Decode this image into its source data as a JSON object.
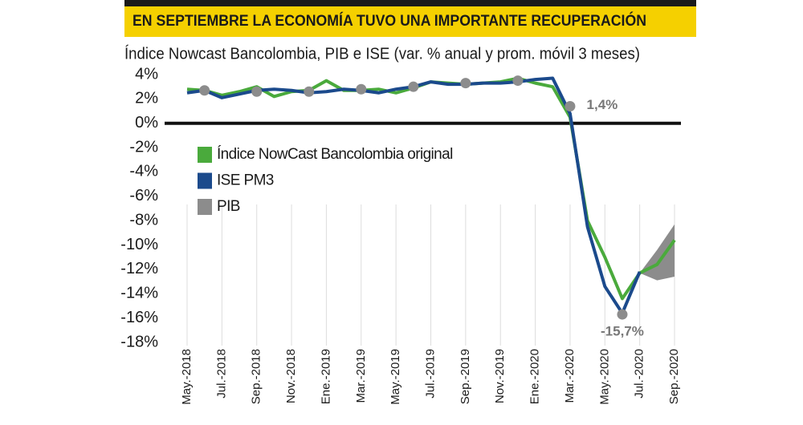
{
  "chart_data": {
    "type": "line",
    "title": "EN SEPTIEMBRE LA ECONOMÍA TUVO UNA IMPORTANTE RECUPERACIÓN",
    "subtitle": "Índice Nowcast Bancolombia, PIB e ISE (var. % anual y prom. móvil 3 meses)",
    "categories": [
      "May.-2018",
      null,
      "Jul.-2018",
      null,
      "Sep.-2018",
      null,
      "Nov.-2018",
      null,
      "Ene.-2019",
      null,
      "Mar.-2019",
      null,
      "May.-2019",
      null,
      "Jul.-2019",
      null,
      "Sep.-2019",
      null,
      "Nov.-2019",
      null,
      "Ene.-2020",
      null,
      "Mar.-2020",
      null,
      "May.-2020",
      null,
      "Jul.-2020",
      null,
      "Sep.-2020"
    ],
    "series": [
      {
        "name": "Índice NowCast Bancolombia original",
        "color": "#4aaa3c",
        "style": "line",
        "values": [
          2.8,
          2.7,
          2.3,
          2.6,
          3.0,
          2.2,
          2.6,
          2.7,
          3.5,
          2.7,
          2.7,
          2.8,
          2.5,
          2.9,
          3.4,
          3.3,
          3.2,
          3.3,
          3.4,
          3.7,
          3.3,
          3.0,
          0.5,
          -8.0,
          -11.0,
          -14.4,
          -12.3,
          -11.6,
          -9.6
        ]
      },
      {
        "name": "ISE PM3",
        "color": "#1b4a8c",
        "style": "line",
        "values": [
          2.5,
          2.7,
          2.1,
          2.4,
          2.7,
          2.8,
          2.7,
          2.5,
          2.6,
          2.8,
          2.7,
          2.5,
          2.8,
          3.0,
          3.4,
          3.2,
          3.2,
          3.3,
          3.3,
          3.4,
          3.6,
          3.7,
          0.8,
          -8.5,
          -13.4,
          -15.6,
          -12.2,
          null,
          null
        ]
      },
      {
        "name": "PIB",
        "color": "#8c8c8c",
        "style": "dots",
        "values": [
          null,
          2.7,
          null,
          null,
          2.6,
          null,
          null,
          2.6,
          null,
          null,
          2.8,
          null,
          null,
          3.0,
          null,
          null,
          3.3,
          null,
          null,
          3.5,
          null,
          null,
          1.4,
          null,
          null,
          -15.7,
          null,
          null,
          null
        ],
        "value_labels": [
          null,
          null,
          null,
          null,
          null,
          null,
          null,
          null,
          null,
          null,
          null,
          null,
          null,
          null,
          null,
          null,
          null,
          null,
          null,
          null,
          null,
          null,
          "1,4%",
          null,
          null,
          "-15,7%",
          null,
          null,
          null
        ],
        "low": [
          null,
          null,
          null,
          null,
          null,
          null,
          null,
          null,
          null,
          null,
          null,
          null,
          null,
          null,
          null,
          null,
          null,
          null,
          null,
          null,
          null,
          null,
          null,
          null,
          null,
          null,
          -12.3,
          -12.9,
          -12.6
        ],
        "high": [
          null,
          null,
          null,
          null,
          null,
          null,
          null,
          null,
          null,
          null,
          null,
          null,
          null,
          null,
          null,
          null,
          null,
          null,
          null,
          null,
          null,
          null,
          null,
          null,
          null,
          null,
          -12.3,
          -10.4,
          -8.3
        ]
      }
    ],
    "ylim": [
      -18,
      4
    ],
    "yticks": [
      {
        "value": 4,
        "label": "4%"
      },
      {
        "value": 2,
        "label": "2%"
      },
      {
        "value": 0,
        "label": "0%"
      },
      {
        "value": -2,
        "label": "-2%"
      },
      {
        "value": -4,
        "label": "-4%"
      },
      {
        "value": -6,
        "label": "-6%"
      },
      {
        "value": -8,
        "label": "-8%"
      },
      {
        "value": -10,
        "label": "-10%"
      },
      {
        "value": -12,
        "label": "-12%"
      },
      {
        "value": -14,
        "label": "-14%"
      },
      {
        "value": -16,
        "label": "-16%"
      },
      {
        "value": -18,
        "label": "-18%"
      }
    ],
    "zero_line": true,
    "legend": "upper left",
    "banner_color": "#f5d000"
  }
}
